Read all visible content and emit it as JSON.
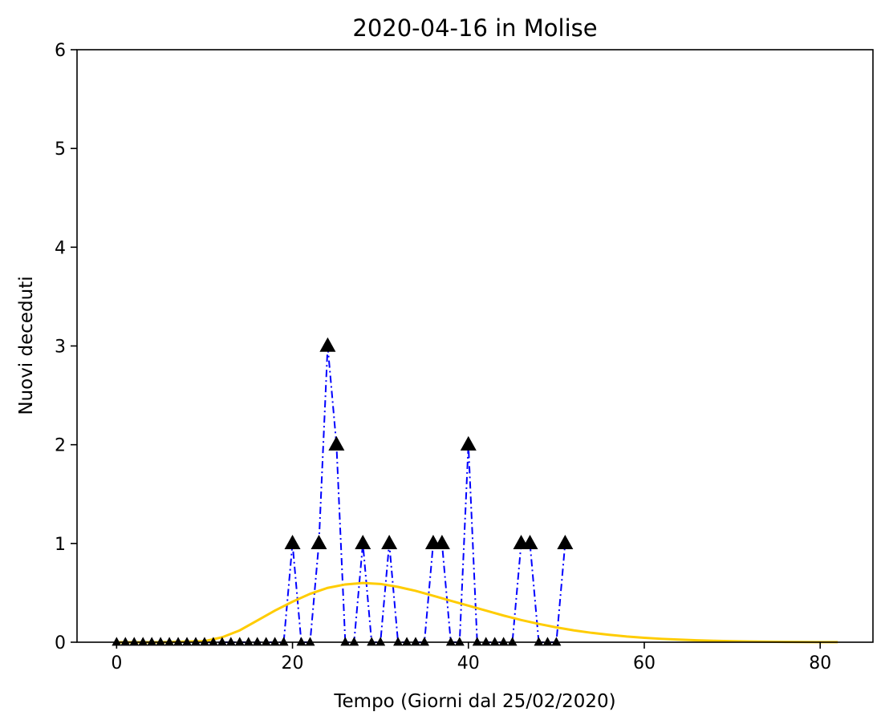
{
  "chart_data": {
    "type": "line",
    "title": "2020-04-16 in Molise",
    "xlabel": "Tempo (Giorni dal 25/02/2020)",
    "ylabel": "Nuovi deceduti",
    "xlim": [
      -4.5,
      86
    ],
    "ylim": [
      0,
      6
    ],
    "xticks": [
      0,
      20,
      40,
      60,
      80
    ],
    "yticks": [
      0,
      1,
      2,
      3,
      4,
      5,
      6
    ],
    "grid": false,
    "series": [
      {
        "kind": "observed",
        "color": "#0000ff",
        "line_style": "dash-dot",
        "marker": "triangle-up",
        "marker_color": "#000000",
        "x": [
          0,
          1,
          2,
          3,
          4,
          5,
          6,
          7,
          8,
          9,
          10,
          11,
          12,
          13,
          14,
          15,
          16,
          17,
          18,
          19,
          20,
          21,
          22,
          23,
          24,
          25,
          26,
          27,
          28,
          29,
          30,
          31,
          32,
          33,
          34,
          35,
          36,
          37,
          38,
          39,
          40,
          41,
          42,
          43,
          44,
          45,
          46,
          47,
          48,
          49,
          50,
          51
        ],
        "y": [
          0,
          0,
          0,
          0,
          0,
          0,
          0,
          0,
          0,
          0,
          0,
          0,
          0,
          0,
          0,
          0,
          0,
          0,
          0,
          0,
          1,
          0,
          0,
          1,
          3,
          2,
          0,
          0,
          1,
          0,
          0,
          1,
          0,
          0,
          0,
          0,
          1,
          1,
          0,
          0,
          2,
          0,
          0,
          0,
          0,
          0,
          1,
          1,
          0,
          0,
          0,
          1
        ]
      },
      {
        "kind": "fit",
        "color": "#ffcc00",
        "line_style": "solid",
        "x": [
          0,
          5,
          10,
          12,
          14,
          16,
          18,
          20,
          22,
          24,
          26,
          28,
          30,
          32,
          34,
          36,
          38,
          40,
          42,
          44,
          46,
          48,
          50,
          52,
          54,
          56,
          58,
          60,
          62,
          64,
          66,
          68,
          70,
          72,
          74,
          76,
          78,
          80,
          82
        ],
        "y": [
          0.0,
          0.0,
          0.01,
          0.05,
          0.12,
          0.22,
          0.32,
          0.41,
          0.49,
          0.55,
          0.585,
          0.6,
          0.59,
          0.56,
          0.52,
          0.47,
          0.42,
          0.37,
          0.32,
          0.27,
          0.225,
          0.185,
          0.15,
          0.12,
          0.095,
          0.075,
          0.058,
          0.045,
          0.034,
          0.026,
          0.019,
          0.014,
          0.01,
          0.007,
          0.005,
          0.003,
          0.002,
          0.001,
          0.001
        ]
      }
    ]
  }
}
